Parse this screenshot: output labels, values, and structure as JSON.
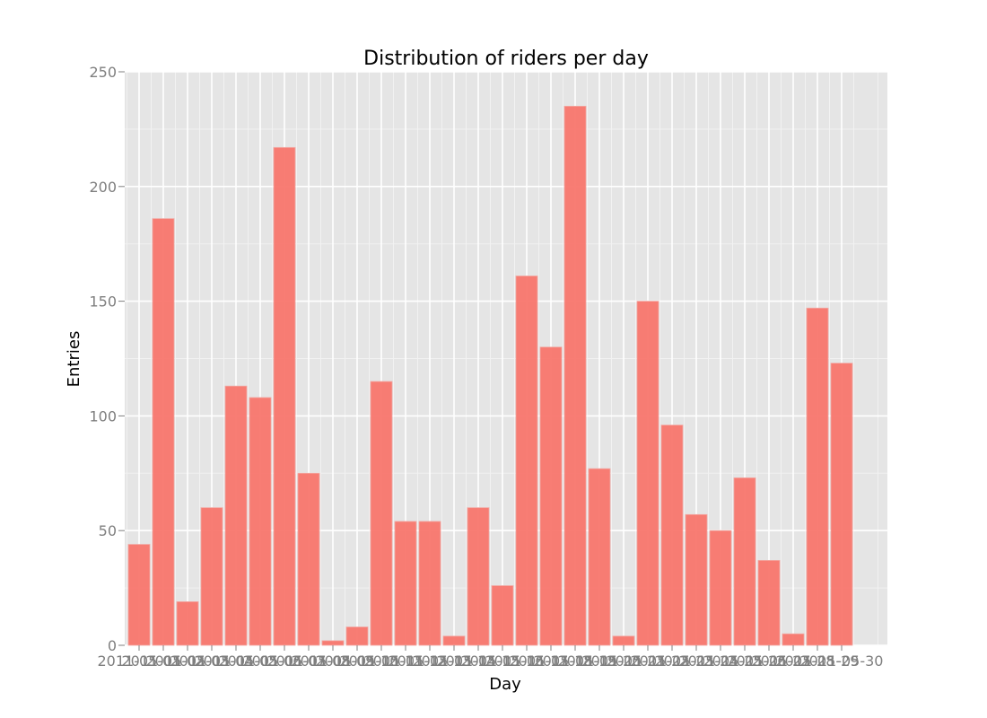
{
  "chart_data": {
    "type": "bar",
    "title": "Distribution of riders per day",
    "xlabel": "Day",
    "ylabel": "Entries",
    "ylim": [
      0,
      250
    ],
    "yticks": [
      0,
      50,
      100,
      150,
      200,
      250
    ],
    "grid": true,
    "categories": [
      "2011-05-01",
      "2011-05-02",
      "2011-05-03",
      "2011-05-04",
      "2011-05-05",
      "2011-05-06",
      "2011-05-07",
      "2011-05-08",
      "2011-05-09",
      "2011-05-10",
      "2011-05-11",
      "2011-05-12",
      "2011-05-13",
      "2011-05-14",
      "2011-05-15",
      "2011-05-16",
      "2011-05-17",
      "2011-05-18",
      "2011-05-19",
      "2011-05-20",
      "2011-05-21",
      "2011-05-22",
      "2011-05-23",
      "2011-05-24",
      "2011-05-25",
      "2011-05-26",
      "2011-05-27",
      "2011-05-28",
      "2011-05-29",
      "2011-05-30"
    ],
    "values": [
      44,
      186,
      19,
      60,
      113,
      108,
      217,
      75,
      2,
      8,
      115,
      54,
      54,
      4,
      60,
      26,
      161,
      130,
      235,
      77,
      4,
      150,
      96,
      57,
      50,
      73,
      37,
      5,
      147,
      123
    ],
    "xtick_labels": [
      "2011-05-01",
      "2011-05-02",
      "2011-05-03",
      "2011-05-04",
      "2011-05-05",
      "2011-05-06",
      "2011-05-07",
      "2011-05-08",
      "2011-05-09",
      "2011-05-10",
      "2011-05-11",
      "2011-05-12",
      "2011-05-13",
      "2011-05-14",
      "2011-05-15",
      "2011-05-16",
      "2011-05-17",
      "2011-05-18",
      "2011-05-19",
      "2011-05-20",
      "2011-05-21",
      "2011-05-22",
      "2011-05-23",
      "2011-05-24",
      "2011-05-25",
      "2011-05-26",
      "2011-05-27",
      "2011-05-28",
      "2011-05-29",
      "2011-05-30"
    ],
    "colors": {
      "bar": "#f8766d",
      "panel": "#e5e5e5",
      "grid_major": "#ffffff",
      "grid_minor": "#f2f2f2"
    }
  }
}
